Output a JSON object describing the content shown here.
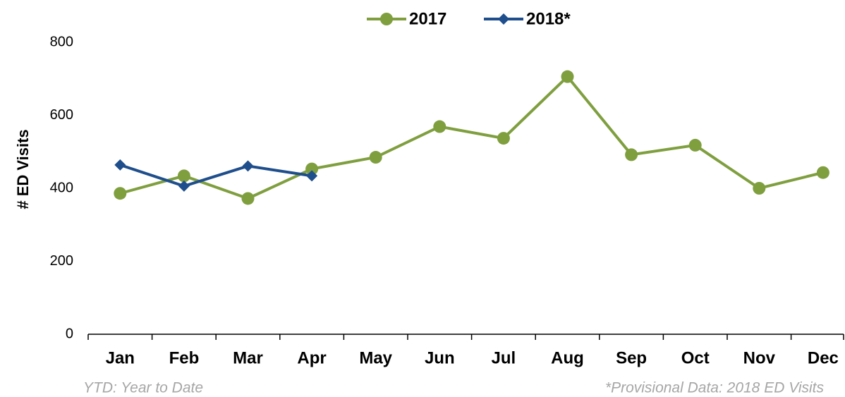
{
  "chart_data": {
    "type": "line",
    "ylabel": "# ED Visits",
    "categories": [
      "Jan",
      "Feb",
      "Mar",
      "Apr",
      "May",
      "Jun",
      "Jul",
      "Aug",
      "Sep",
      "Oct",
      "Nov",
      "Dec"
    ],
    "series": [
      {
        "name": "2017",
        "color": "#7f9f3f",
        "marker": "circle",
        "values": [
          386,
          434,
          372,
          453,
          485,
          569,
          537,
          706,
          492,
          518,
          400,
          443
        ]
      },
      {
        "name": "2018*",
        "color": "#1f4e8c",
        "marker": "diamond",
        "values": [
          464,
          406,
          461,
          434,
          null,
          null,
          null,
          null,
          null,
          null,
          null,
          null
        ]
      }
    ],
    "ylim": [
      0,
      800
    ],
    "yticks": [
      0,
      200,
      400,
      600,
      800
    ],
    "grid": false,
    "legend": "top",
    "notes": [
      "YTD: Year to Date",
      "*Provisional Data: 2018 ED Visits"
    ]
  }
}
